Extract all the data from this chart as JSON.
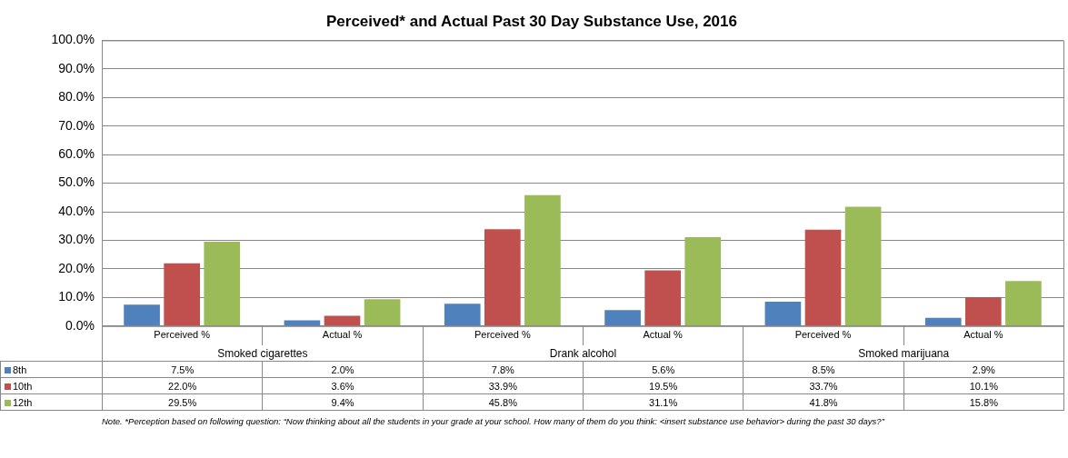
{
  "chart_data": {
    "type": "bar",
    "title": "Perceived* and Actual Past 30 Day Substance Use, 2016",
    "categories": [
      "Perceived %",
      "Actual %",
      "Perceived %",
      "Actual %",
      "Perceived %",
      "Actual %"
    ],
    "series": [
      {
        "name": "8th",
        "color": "#4f81bd",
        "values": [
          7.5,
          2.0,
          7.8,
          5.6,
          8.5,
          2.9
        ],
        "value_labels": [
          "7.5%",
          "2.0%",
          "7.8%",
          "5.6%",
          "8.5%",
          "2.9%"
        ]
      },
      {
        "name": "10th",
        "color": "#c0504d",
        "values": [
          22.0,
          3.6,
          33.9,
          19.5,
          33.7,
          10.1
        ],
        "value_labels": [
          "22.0%",
          "3.6%",
          "33.9%",
          "19.5%",
          "33.7%",
          "10.1%"
        ]
      },
      {
        "name": "12th",
        "color": "#9bbb59",
        "values": [
          29.5,
          9.4,
          45.8,
          31.1,
          41.8,
          15.8
        ],
        "value_labels": [
          "29.5%",
          "9.4%",
          "45.8%",
          "31.1%",
          "41.8%",
          "15.8%"
        ]
      }
    ],
    "ylim": [
      0,
      100
    ],
    "yticks": [
      {
        "value": 0,
        "label": "0.0%"
      },
      {
        "value": 10,
        "label": "10.0%"
      },
      {
        "value": 20,
        "label": "20.0%"
      },
      {
        "value": 30,
        "label": "30.0%"
      },
      {
        "value": 40,
        "label": "40.0%"
      },
      {
        "value": 50,
        "label": "50.0%"
      },
      {
        "value": 60,
        "label": "60.0%"
      },
      {
        "value": 70,
        "label": "70.0%"
      },
      {
        "value": 80,
        "label": "80.0%"
      },
      {
        "value": 90,
        "label": "90.0%"
      },
      {
        "value": 100,
        "label": "100.0%"
      }
    ],
    "grid": "y",
    "legend": "bottom left",
    "annotations": [
      "Smoked cigarettes",
      "Drank alcohol",
      "Smoked marijuana",
      "Note. *Perception based on following question: “Now thinking about all the students in your grade at your school. How many of them do you think: <insert substance use behavior> during the past 30 days?”"
    ]
  }
}
